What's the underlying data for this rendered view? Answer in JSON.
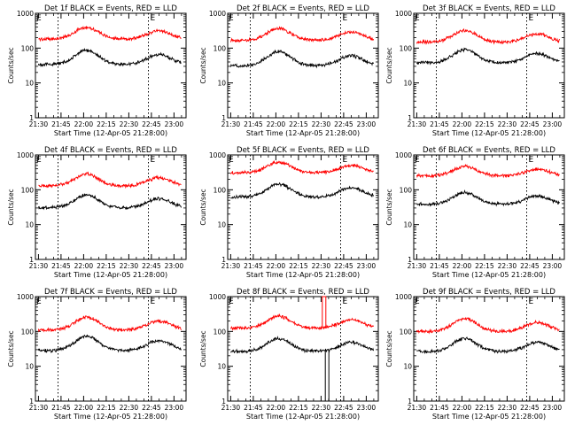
{
  "chart_data": [
    {
      "type": "line",
      "title": "Det 1f BLACK = Events, RED = LLD",
      "xlabel": "Start Time (12-Apr-05 21:28:00)",
      "ylabel": "Counts/sec",
      "yscale": "log",
      "ylim": [
        1,
        1000
      ],
      "yticks": [
        "1",
        "10",
        "100",
        "1000"
      ],
      "xticks": [
        "21:30",
        "21:45",
        "22:00",
        "22:15",
        "22:30",
        "22:45",
        "23:00"
      ],
      "xlim": [
        -2,
        98
      ],
      "vlines": [
        13,
        73
      ],
      "marker": "E",
      "series": [
        {
          "color": "#ff0000",
          "baseline": 190,
          "amplitude": 1.0,
          "spikes": []
        },
        {
          "color": "#000000",
          "baseline": 36,
          "amplitude": 1.2,
          "spikes": []
        }
      ]
    },
    {
      "type": "line",
      "title": "Det 2f BLACK = Events, RED = LLD",
      "xlabel": "Start Time (12-Apr-05 21:28:00)",
      "ylabel": "Counts/sec",
      "yscale": "log",
      "ylim": [
        1,
        1000
      ],
      "yticks": [
        "1",
        "10",
        "100",
        "1000"
      ],
      "xticks": [
        "21:30",
        "21:45",
        "22:00",
        "22:15",
        "22:30",
        "22:45",
        "23:00"
      ],
      "xlim": [
        -2,
        98
      ],
      "vlines": [
        13,
        73
      ],
      "marker": "E",
      "series": [
        {
          "color": "#ff0000",
          "baseline": 175,
          "amplitude": 1.0,
          "spikes": []
        },
        {
          "color": "#000000",
          "baseline": 33,
          "amplitude": 1.2,
          "spikes": []
        }
      ]
    },
    {
      "type": "line",
      "title": "Det 3f BLACK = Events, RED = LLD",
      "xlabel": "Start Time (12-Apr-05 21:28:00)",
      "ylabel": "Counts/sec",
      "yscale": "log",
      "ylim": [
        1,
        1000
      ],
      "yticks": [
        "1",
        "10",
        "100",
        "1000"
      ],
      "xticks": [
        "21:30",
        "21:45",
        "22:00",
        "22:15",
        "22:30",
        "22:45",
        "23:00"
      ],
      "xlim": [
        -2,
        98
      ],
      "vlines": [
        13,
        73
      ],
      "marker": "E",
      "series": [
        {
          "color": "#ff0000",
          "baseline": 155,
          "amplitude": 1.0,
          "spikes": []
        },
        {
          "color": "#000000",
          "baseline": 40,
          "amplitude": 1.1,
          "spikes": []
        }
      ]
    },
    {
      "type": "line",
      "title": "Det 4f BLACK = Events, RED = LLD",
      "xlabel": "Start Time (12-Apr-05 21:28:00)",
      "ylabel": "Counts/sec",
      "yscale": "log",
      "ylim": [
        1,
        1000
      ],
      "yticks": [
        "1",
        "10",
        "100",
        "1000"
      ],
      "xticks": [
        "21:30",
        "21:45",
        "22:00",
        "22:15",
        "22:30",
        "22:45",
        "23:00"
      ],
      "xlim": [
        -2,
        98
      ],
      "vlines": [
        13,
        73
      ],
      "marker": "E",
      "series": [
        {
          "color": "#ff0000",
          "baseline": 135,
          "amplitude": 1.0,
          "spikes": []
        },
        {
          "color": "#000000",
          "baseline": 32,
          "amplitude": 1.1,
          "spikes": []
        }
      ]
    },
    {
      "type": "line",
      "title": "Det 5f BLACK = Events, RED = LLD",
      "xlabel": "Start Time (12-Apr-05 21:28:00)",
      "ylabel": "Counts/sec",
      "yscale": "log",
      "ylim": [
        1,
        1000
      ],
      "yticks": [
        "1",
        "10",
        "100",
        "1000"
      ],
      "xticks": [
        "21:30",
        "21:45",
        "22:00",
        "22:15",
        "22:30",
        "22:45",
        "23:00"
      ],
      "xlim": [
        -2,
        98
      ],
      "vlines": [
        13,
        73
      ],
      "marker": "E",
      "series": [
        {
          "color": "#ff0000",
          "baseline": 320,
          "amplitude": 0.9,
          "spikes": []
        },
        {
          "color": "#000000",
          "baseline": 65,
          "amplitude": 1.1,
          "spikes": []
        }
      ]
    },
    {
      "type": "line",
      "title": "Det 6f BLACK = Events, RED = LLD",
      "xlabel": "Start Time (12-Apr-05 21:28:00)",
      "ylabel": "Counts/sec",
      "yscale": "log",
      "ylim": [
        1,
        1000
      ],
      "yticks": [
        "1",
        "10",
        "100",
        "1000"
      ],
      "xticks": [
        "21:30",
        "21:45",
        "22:00",
        "22:15",
        "22:30",
        "22:45",
        "23:00"
      ],
      "xlim": [
        -2,
        98
      ],
      "vlines": [
        13,
        73
      ],
      "marker": "E",
      "series": [
        {
          "color": "#ff0000",
          "baseline": 260,
          "amplitude": 0.8,
          "spikes": []
        },
        {
          "color": "#000000",
          "baseline": 40,
          "amplitude": 1.0,
          "spikes": []
        }
      ]
    },
    {
      "type": "line",
      "title": "Det 7f BLACK = Events, RED = LLD",
      "xlabel": "Start Time (12-Apr-05 21:28:00)",
      "ylabel": "Counts/sec",
      "yscale": "log",
      "ylim": [
        1,
        1000
      ],
      "yticks": [
        "1",
        "10",
        "100",
        "1000"
      ],
      "xticks": [
        "21:30",
        "21:45",
        "22:00",
        "22:15",
        "22:30",
        "22:45",
        "23:00"
      ],
      "xlim": [
        -2,
        98
      ],
      "vlines": [
        13,
        73
      ],
      "marker": "E",
      "series": [
        {
          "color": "#ff0000",
          "baseline": 115,
          "amplitude": 1.1,
          "spikes": []
        },
        {
          "color": "#000000",
          "baseline": 30,
          "amplitude": 1.2,
          "spikes": []
        }
      ]
    },
    {
      "type": "line",
      "title": "Det 8f BLACK = Events, RED = LLD",
      "xlabel": "Start Time (12-Apr-05 21:28:00)",
      "ylabel": "Counts/sec",
      "yscale": "log",
      "ylim": [
        1,
        1000
      ],
      "yticks": [
        "1",
        "10",
        "100",
        "1000"
      ],
      "xticks": [
        "21:30",
        "21:45",
        "22:00",
        "22:15",
        "22:30",
        "22:45",
        "23:00"
      ],
      "xlim": [
        -2,
        98
      ],
      "vlines": [
        13,
        73
      ],
      "marker": "E",
      "series": [
        {
          "color": "#ff0000",
          "baseline": 130,
          "amplitude": 1.0,
          "spikes": [
            {
              "x": 62,
              "value": 1000
            }
          ]
        },
        {
          "color": "#000000",
          "baseline": 28,
          "amplitude": 1.1,
          "spikes": [
            {
              "x": 64,
              "value": 1
            }
          ]
        }
      ]
    },
    {
      "type": "line",
      "title": "Det 9f BLACK = Events, RED = LLD",
      "xlabel": "Start Time (12-Apr-05 21:28:00)",
      "ylabel": "Counts/sec",
      "yscale": "log",
      "ylim": [
        1,
        1000
      ],
      "yticks": [
        "1",
        "10",
        "100",
        "1000"
      ],
      "xticks": [
        "21:30",
        "21:45",
        "22:00",
        "22:15",
        "22:30",
        "22:45",
        "23:00"
      ],
      "xlim": [
        -2,
        98
      ],
      "vlines": [
        13,
        73
      ],
      "marker": "E",
      "series": [
        {
          "color": "#ff0000",
          "baseline": 105,
          "amplitude": 1.1,
          "spikes": []
        },
        {
          "color": "#000000",
          "baseline": 28,
          "amplitude": 1.1,
          "spikes": []
        }
      ]
    }
  ]
}
